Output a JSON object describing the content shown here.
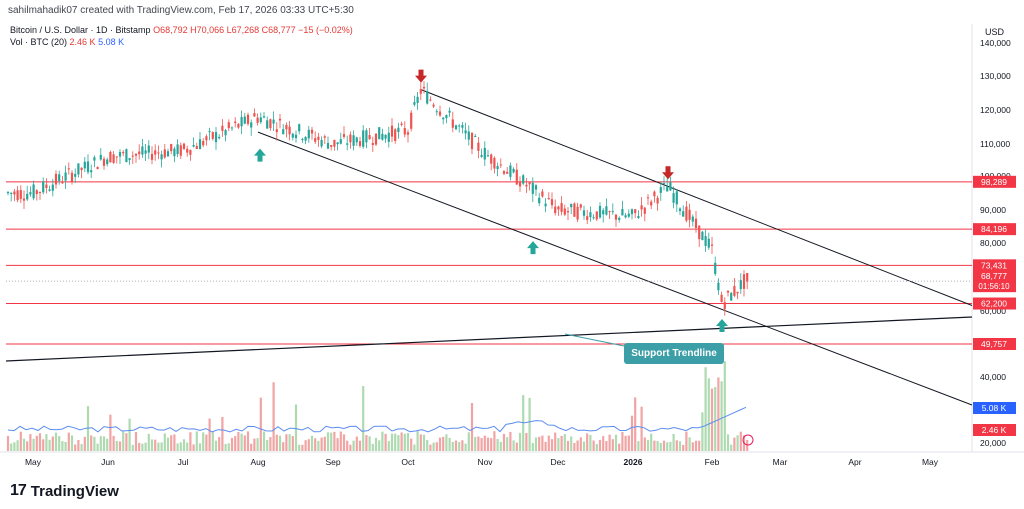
{
  "header": {
    "created": "sahilmahadik07 created with TradingView.com, Feb 17, 2026 03:33 UTC+5:30",
    "symbol": "Bitcoin / U.S. Dollar · 1D · Bitstamp",
    "ohlc": "O68,792 H70,066 L67,268 C68,777 −15 (−0.02%)",
    "vol_label": "Vol · BTC (20)",
    "vol_a": "2.46 K",
    "vol_b": "5.08 K",
    "currency": "USD"
  },
  "brand": {
    "name": "TradingView",
    "mark": "17"
  },
  "annotation": {
    "label": "Support Trendline"
  },
  "colors": {
    "up": "#26a69a",
    "down": "#ef5350",
    "level": "#f23645",
    "trend": "#131722",
    "ma": "#5b8def",
    "annot": "#3c9ea6"
  },
  "chart_data": {
    "type": "candlestick",
    "x_ticks": [
      "May",
      "Jun",
      "Jul",
      "Aug",
      "Sep",
      "Oct",
      "Nov",
      "Dec",
      "2026",
      "Feb",
      "Mar",
      "Apr",
      "May"
    ],
    "y_ticks": [
      140000,
      130000,
      120000,
      110000,
      100000,
      90000,
      80000,
      60000,
      40000,
      20000
    ],
    "y_tick_labels": [
      "140,000",
      "130,000",
      "120,000",
      "110,000",
      "100,000",
      "90,000",
      "80,000",
      "60,000",
      "40,000",
      "20,000"
    ],
    "horizontal_levels": [
      {
        "value": 98289,
        "label": "98,289"
      },
      {
        "value": 84196,
        "label": "84,196"
      },
      {
        "value": 73431,
        "label": "73,431"
      },
      {
        "value": 62200,
        "label": "62,200"
      },
      {
        "value": 49757,
        "label": "49,757"
      }
    ],
    "last_price": {
      "label": "68,777",
      "countdown": "01:56:10"
    },
    "volume_tags": [
      {
        "label": "5.08 K"
      },
      {
        "label": "2.46 K"
      }
    ],
    "prices": [
      {
        "month": "May",
        "close": 95000
      },
      {
        "month": "Jun",
        "close": 106000
      },
      {
        "month": "Jul",
        "close": 108000
      },
      {
        "month": "Aug",
        "close": 118000
      },
      {
        "month": "Sep",
        "close": 110000
      },
      {
        "month": "Oct",
        "close": 114000
      },
      {
        "month": "Oct-peak",
        "close": 126000
      },
      {
        "month": "Nov",
        "close": 107000
      },
      {
        "month": "Dec",
        "close": 90000
      },
      {
        "month": "2026",
        "close": 88000
      },
      {
        "month": "Jan-high",
        "close": 97000
      },
      {
        "month": "Feb",
        "close": 78000
      },
      {
        "month": "Feb-low",
        "close": 62200
      },
      {
        "month": "Feb-now",
        "close": 68777
      }
    ],
    "markers": [
      {
        "kind": "up-arrow",
        "month": "Aug",
        "price": 111000
      },
      {
        "kind": "down-arrow",
        "month": "Oct",
        "price": 126000
      },
      {
        "kind": "up-arrow",
        "month": "Dec",
        "price": 83000
      },
      {
        "kind": "down-arrow",
        "month": "2026",
        "price": 97000
      },
      {
        "kind": "up-arrow",
        "month": "Feb",
        "price": 60000
      }
    ]
  }
}
